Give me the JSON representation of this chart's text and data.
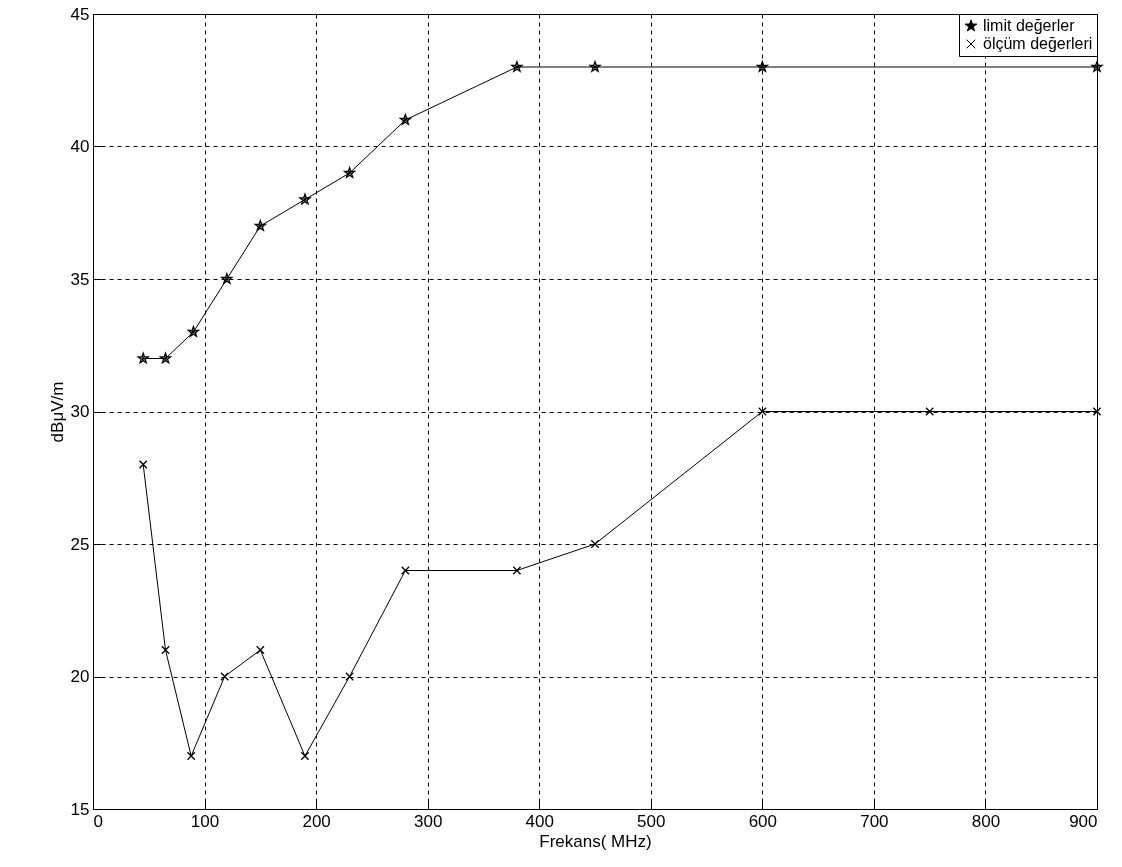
{
  "chart_data": {
    "type": "line",
    "xlabel": "Frekans( MHz)",
    "ylabel": "dBμV/m",
    "xlim": [
      0,
      900
    ],
    "xticks": [
      0,
      100,
      200,
      300,
      400,
      500,
      600,
      700,
      800,
      900
    ],
    "ylim": [
      15,
      45
    ],
    "yticks": [
      15,
      20,
      25,
      30,
      35,
      40,
      45
    ],
    "grid": true,
    "legend": "top right",
    "line_style": "solid",
    "series": [
      {
        "name": "limit değerler",
        "color": "#000000",
        "marker": "star",
        "x": [
          45,
          65,
          90,
          120,
          150,
          190,
          230,
          280,
          380,
          450,
          600,
          900
        ],
        "values": [
          32,
          32,
          33,
          35,
          37,
          38,
          39,
          41,
          43,
          43,
          43,
          43
        ]
      },
      {
        "name": "ölçüm değerleri",
        "color": "#000000",
        "marker": "cross",
        "x": [
          45,
          65,
          88,
          118,
          150,
          190,
          230,
          280,
          380,
          450,
          600,
          750,
          900
        ],
        "values": [
          28,
          21,
          17,
          20,
          21,
          17,
          20,
          24,
          24,
          25,
          30,
          30,
          30
        ]
      }
    ]
  }
}
